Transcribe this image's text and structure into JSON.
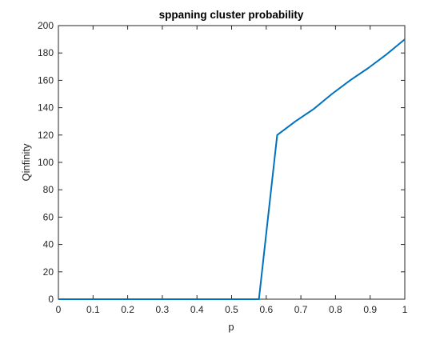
{
  "chart_data": {
    "type": "line",
    "title": "sppaning cluster probability",
    "xlabel": "p",
    "ylabel": "Qinfinity",
    "xlim": [
      0,
      1
    ],
    "ylim": [
      0,
      200
    ],
    "xticks": [
      0,
      0.1,
      0.2,
      0.3,
      0.4,
      0.5,
      0.6,
      0.7,
      0.8,
      0.9,
      1
    ],
    "xtick_labels": [
      "0",
      "0.1",
      "0.2",
      "0.3",
      "0.4",
      "0.5",
      "0.6",
      "0.7",
      "0.8",
      "0.9",
      "1"
    ],
    "yticks": [
      0,
      20,
      40,
      60,
      80,
      100,
      120,
      140,
      160,
      180,
      200
    ],
    "ytick_labels": [
      "0",
      "20",
      "40",
      "60",
      "80",
      "100",
      "120",
      "140",
      "160",
      "180",
      "200"
    ],
    "grid": false,
    "box": true,
    "series": [
      {
        "color": "#0072BD",
        "x": [
          0,
          0.0526,
          0.1053,
          0.1579,
          0.2105,
          0.2632,
          0.3158,
          0.3684,
          0.4211,
          0.4737,
          0.5263,
          0.5789,
          0.6316,
          0.6842,
          0.7368,
          0.7895,
          0.8421,
          0.8947,
          0.9474,
          1
        ],
        "y": [
          0,
          0,
          0,
          0,
          0,
          0,
          0,
          0,
          0,
          0,
          0,
          0,
          120,
          130,
          139,
          150,
          160,
          169,
          179,
          190
        ]
      }
    ]
  }
}
